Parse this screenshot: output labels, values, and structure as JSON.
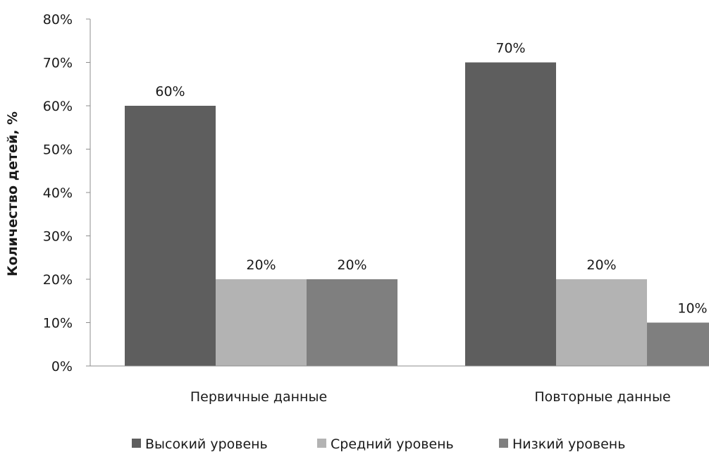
{
  "chart_data": {
    "type": "bar",
    "title": "",
    "xlabel": "",
    "ylabel": "Количество детей, %",
    "ylim": [
      0,
      80
    ],
    "y_ticks": [
      0,
      10,
      20,
      30,
      40,
      50,
      60,
      70,
      80
    ],
    "y_tick_suffix": "%",
    "categories": [
      "Первичные данные",
      "Повторные данные"
    ],
    "series": [
      {
        "name": "Высокий уровень",
        "values": [
          60,
          70
        ],
        "color": "#5e5e5e"
      },
      {
        "name": "Средний уровень",
        "values": [
          20,
          20
        ],
        "color": "#b3b3b3"
      },
      {
        "name": "Низкий уровень",
        "values": [
          20,
          10
        ],
        "color": "#7f7f7f"
      }
    ],
    "data_labels": [
      [
        "60%",
        "70%"
      ],
      [
        "20%",
        "20%"
      ],
      [
        "20%",
        "10%"
      ]
    ],
    "grid": false,
    "legend_position": "bottom"
  }
}
